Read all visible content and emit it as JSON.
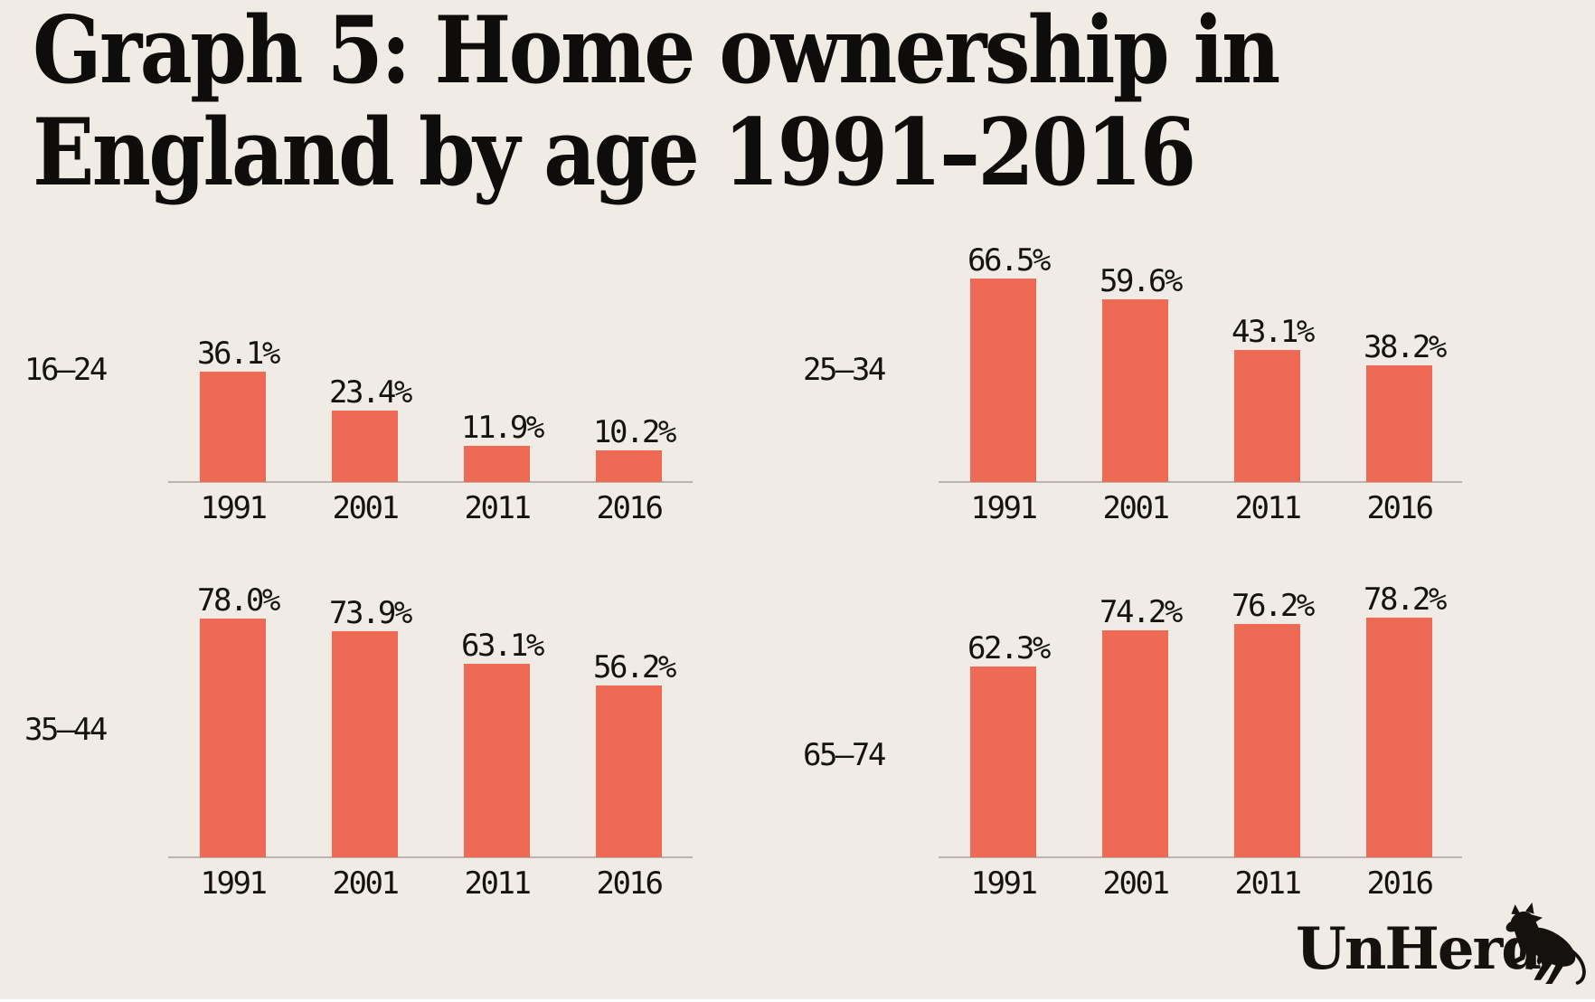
{
  "title": {
    "line1": "Graph 5: Home ownership in",
    "line2": "England by age 1991–2016"
  },
  "logo": {
    "wordmark": "UnHerd",
    "icon": "rearing-cow"
  },
  "colors": {
    "background": "#f0ece5",
    "bar": "#ee6a55",
    "text": "#14130f",
    "axis": "#b9b5ae"
  },
  "chart_data": {
    "type": "bar",
    "layout": "2x2 small multiples",
    "title": "Graph 5: Home ownership in England by age 1991–2016",
    "categories": [
      "1991",
      "2001",
      "2011",
      "2016"
    ],
    "unit": "%",
    "ylim": [
      0,
      100
    ],
    "grid": false,
    "legend_position": "none",
    "value_labels": true,
    "series": [
      {
        "name": "16–24",
        "values": [
          36.1,
          23.4,
          11.9,
          10.2
        ],
        "display": [
          "36.1%",
          "23.4%",
          "11.9%",
          "10.2%"
        ]
      },
      {
        "name": "25–34",
        "values": [
          66.5,
          59.6,
          43.1,
          38.2
        ],
        "display": [
          "66.5%",
          "59.6%",
          "43.1%",
          "38.2%"
        ]
      },
      {
        "name": "35–44",
        "values": [
          78.0,
          73.9,
          63.1,
          56.2
        ],
        "display": [
          "78.0%",
          "73.9%",
          "63.1%",
          "56.2%"
        ]
      },
      {
        "name": "65–74",
        "values": [
          62.3,
          74.2,
          76.2,
          78.2
        ],
        "display": [
          "62.3%",
          "74.2%",
          "76.2%",
          "78.2%"
        ]
      }
    ]
  }
}
